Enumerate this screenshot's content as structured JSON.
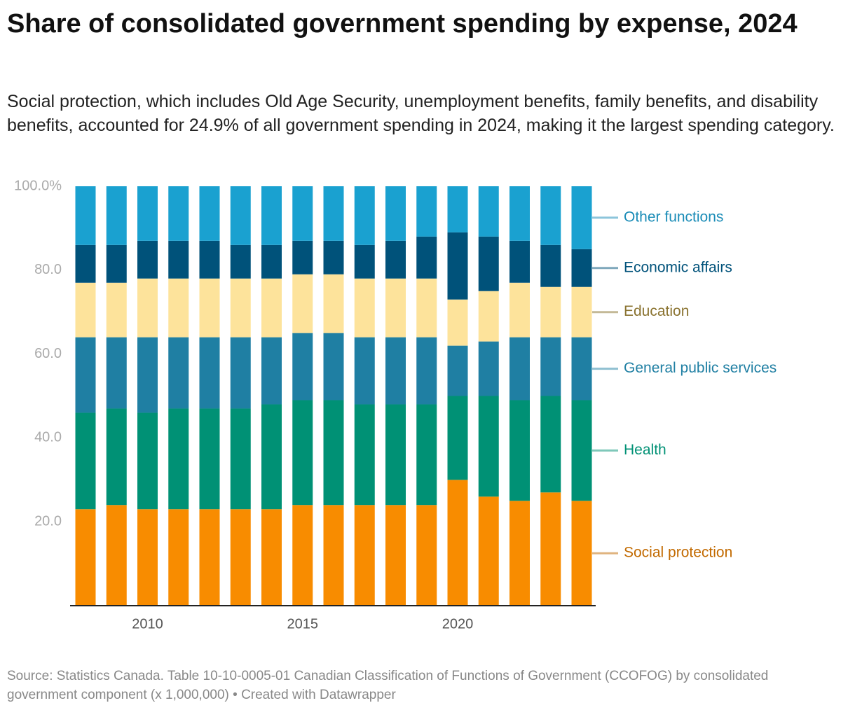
{
  "chart_data": {
    "type": "stacked-bar",
    "title": "Share of consolidated government spending by expense, 2024",
    "subtitle": "Social protection, which includes Old Age Security, unemployment benefits, family benefits, and disability benefits, accounted for 24.9% of all government spending in 2024, making it the largest spending category.",
    "source": "Source: Statistics Canada. Table 10-10-0005-01 Canadian Classification of Functions of Government (CCOFOG) by consolidated government component (x 1,000,000) • Created with Datawrapper",
    "x": [
      2008,
      2009,
      2010,
      2011,
      2012,
      2013,
      2014,
      2015,
      2016,
      2017,
      2018,
      2019,
      2020,
      2021,
      2022,
      2023,
      2024
    ],
    "xlim": [
      2008,
      2024
    ],
    "xticks": [
      2010,
      2015,
      2020
    ],
    "ylim": [
      0,
      100
    ],
    "yticks": [
      {
        "value": 20,
        "label": "20.0"
      },
      {
        "value": 40,
        "label": "40.0"
      },
      {
        "value": 60,
        "label": "60.0"
      },
      {
        "value": 80,
        "label": "80.0"
      },
      {
        "value": 100,
        "label": "100.0%"
      }
    ],
    "grid": false,
    "series": [
      {
        "name": "Social protection",
        "color": "#f88c00",
        "label_color": "#c26a00",
        "values": [
          23,
          24,
          23,
          23,
          23,
          23,
          23,
          24,
          24,
          24,
          24,
          24,
          30,
          26,
          25,
          27,
          25
        ]
      },
      {
        "name": "Health",
        "color": "#009175",
        "label_color": "#009175",
        "values": [
          23,
          23,
          23,
          24,
          24,
          24,
          25,
          25,
          25,
          24,
          24,
          24,
          20,
          24,
          24,
          23,
          24
        ]
      },
      {
        "name": "General public services",
        "color": "#1f7fa3",
        "label_color": "#1f7fa3",
        "values": [
          18,
          17,
          18,
          17,
          17,
          17,
          16,
          16,
          16,
          16,
          16,
          16,
          12,
          13,
          15,
          14,
          15
        ]
      },
      {
        "name": "Education",
        "color": "#fde39b",
        "label_color": "#8a7330",
        "values": [
          13,
          13,
          14,
          14,
          14,
          14,
          14,
          14,
          14,
          14,
          14,
          14,
          11,
          12,
          13,
          12,
          12
        ]
      },
      {
        "name": "Economic affairs",
        "color": "#00527a",
        "label_color": "#00527a",
        "values": [
          9,
          9,
          9,
          9,
          9,
          8,
          8,
          8,
          8,
          8,
          9,
          10,
          16,
          13,
          10,
          10,
          9
        ]
      },
      {
        "name": "Other functions",
        "color": "#1aa1d0",
        "label_color": "#1a8cb7",
        "values": [
          14,
          14,
          13,
          13,
          13,
          14,
          14,
          13,
          13,
          14,
          13,
          12,
          11,
          12,
          13,
          14,
          15
        ]
      }
    ]
  }
}
